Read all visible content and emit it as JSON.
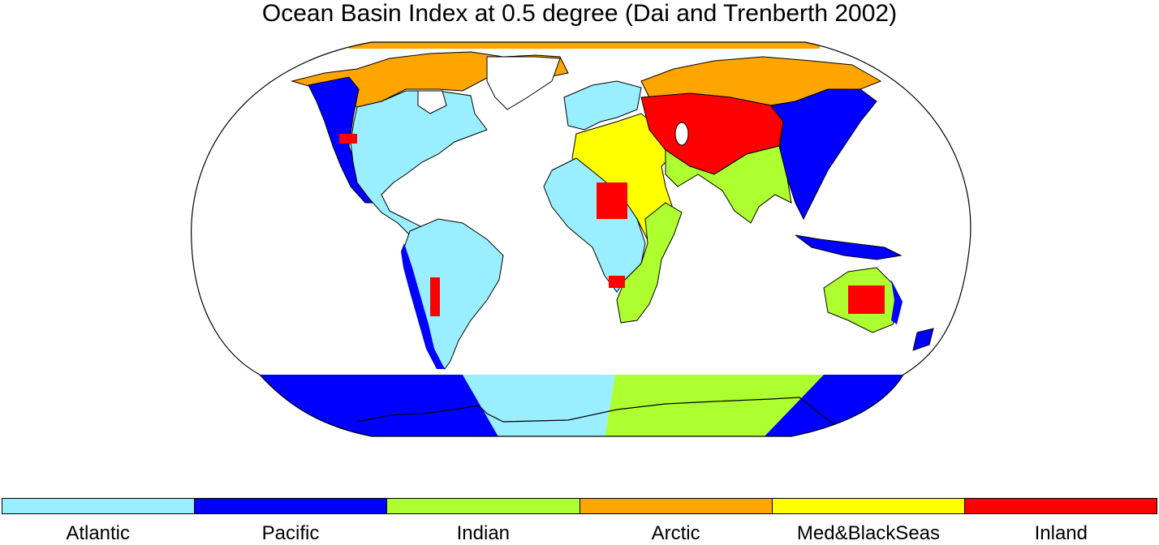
{
  "title": "Ocean Basin Index at 0.5 degree (Dai and Trenberth 2002)",
  "legend": [
    {
      "label": "Atlantic",
      "color": "#99eeff"
    },
    {
      "label": "Pacific",
      "color": "#0000ff"
    },
    {
      "label": "Indian",
      "color": "#adff2f"
    },
    {
      "label": "Arctic",
      "color": "#ffa500"
    },
    {
      "label": "Med&BlackSeas",
      "color": "#ffff00"
    },
    {
      "label": "Inland",
      "color": "#ff0000"
    }
  ]
}
